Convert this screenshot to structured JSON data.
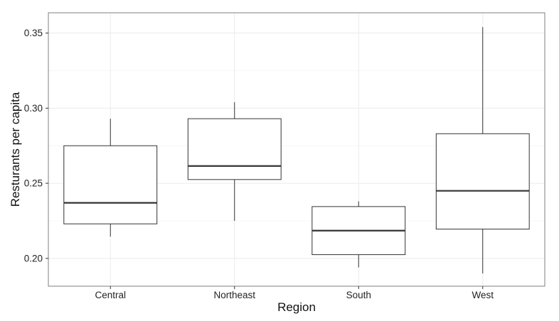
{
  "chart_data": {
    "type": "boxplot",
    "title": "",
    "xlabel": "Region",
    "ylabel": "Resturants per capita",
    "categories": [
      "Central",
      "Northeast",
      "South",
      "West"
    ],
    "boxes": [
      {
        "category": "Central",
        "min": 0.2145,
        "q1": 0.223,
        "median": 0.237,
        "q3": 0.275,
        "max": 0.293
      },
      {
        "category": "Northeast",
        "min": 0.225,
        "q1": 0.2525,
        "median": 0.2615,
        "q3": 0.293,
        "max": 0.304
      },
      {
        "category": "South",
        "min": 0.194,
        "q1": 0.2025,
        "median": 0.2185,
        "q3": 0.2345,
        "max": 0.238
      },
      {
        "category": "West",
        "min": 0.19,
        "q1": 0.2195,
        "median": 0.245,
        "q3": 0.283,
        "max": 0.354
      }
    ],
    "ylim": [
      0.1815,
      0.3635
    ],
    "yticks": [
      "0.20",
      "0.25",
      "0.30",
      "0.35"
    ],
    "grid": true,
    "legend": "none"
  }
}
